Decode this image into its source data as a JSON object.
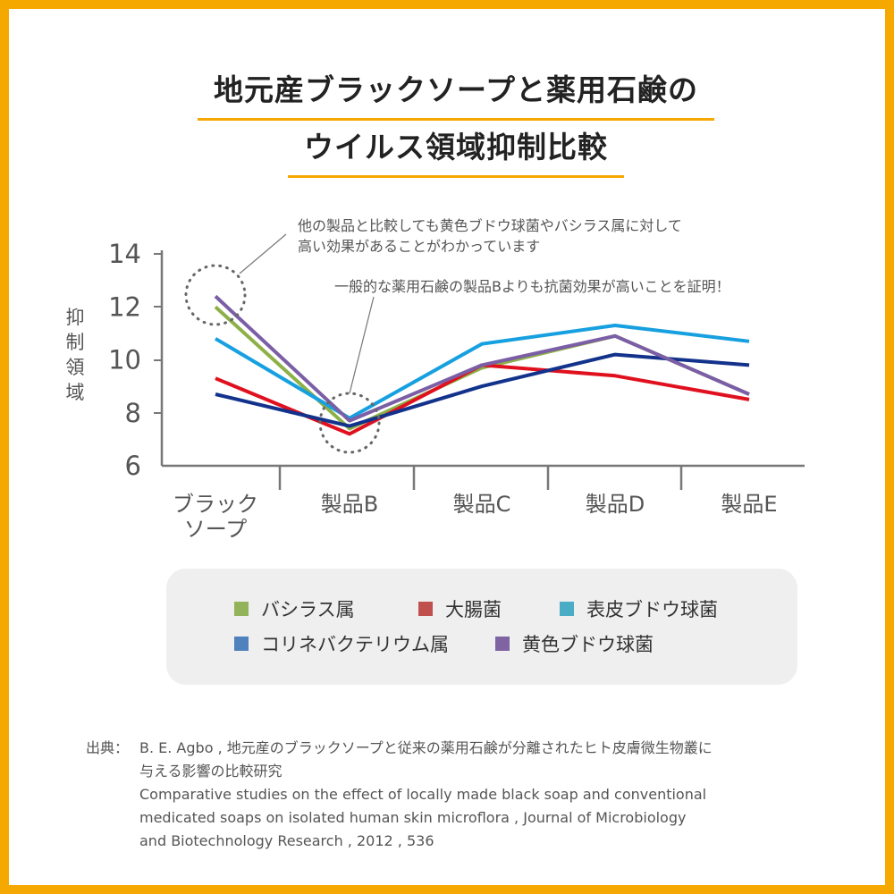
{
  "title": {
    "line1": "地元産ブラックソープと薬用石鹸の",
    "line2": "ウイルス領域抑制比較"
  },
  "annotations": {
    "note1_line1": "他の製品と比較しても黄色ブドウ球菌やバシラス属に対して",
    "note1_line2": "高い効果があることがわかっています",
    "note2": "一般的な薬用石鹸の製品Bよりも抗菌効果が高いことを証明！"
  },
  "chart_data": {
    "type": "line",
    "ylabel": "抑制領域",
    "ylim": [
      6,
      14
    ],
    "yticks": [
      "14",
      "12",
      "10",
      "8",
      "6"
    ],
    "categories": [
      "ブラックソープ",
      "製品B",
      "製品C",
      "製品D",
      "製品E"
    ],
    "category_lines": [
      [
        "ブラック",
        "ソープ"
      ],
      [
        "製品B"
      ],
      [
        "製品C"
      ],
      [
        "製品D"
      ],
      [
        "製品E"
      ]
    ],
    "series": [
      {
        "name": "バシラス属",
        "color": "#8db048",
        "values": [
          12.0,
          7.4,
          9.7,
          10.9,
          8.7
        ]
      },
      {
        "name": "大腸菌",
        "color": "#e0101e",
        "values": [
          9.3,
          7.2,
          9.8,
          9.4,
          8.5
        ]
      },
      {
        "name": "表皮ブドウ球菌",
        "color": "#16a0e0",
        "values": [
          10.8,
          7.8,
          10.6,
          11.3,
          10.7
        ]
      },
      {
        "name": "コリネバクテリウム属",
        "color": "#12328c",
        "values": [
          8.7,
          7.5,
          9.0,
          10.2,
          9.8
        ]
      },
      {
        "name": "黄色ブドウ球菌",
        "color": "#7b5ea6",
        "values": [
          12.4,
          7.7,
          9.8,
          10.9,
          8.7
        ]
      }
    ],
    "grid": false,
    "legend_position": "bottom"
  },
  "legend": {
    "swatch_colors": [
      "#93b35b",
      "#c0504d",
      "#4bacc6",
      "#4f81bd",
      "#8064a2"
    ]
  },
  "source": {
    "label": "出典：",
    "lines": [
      "B. E. Agbo , 地元産のブラックソープと従来の薬用石鹸が分離されたヒト皮膚微生物叢に",
      "与える影響の比較研究",
      "Comparative studies on the effect of locally made black soap and conventional",
      "medicated soaps on isolated human skin microflora , Journal of Microbiology",
      "and Biotechnology Research , 2012 , 536"
    ]
  }
}
